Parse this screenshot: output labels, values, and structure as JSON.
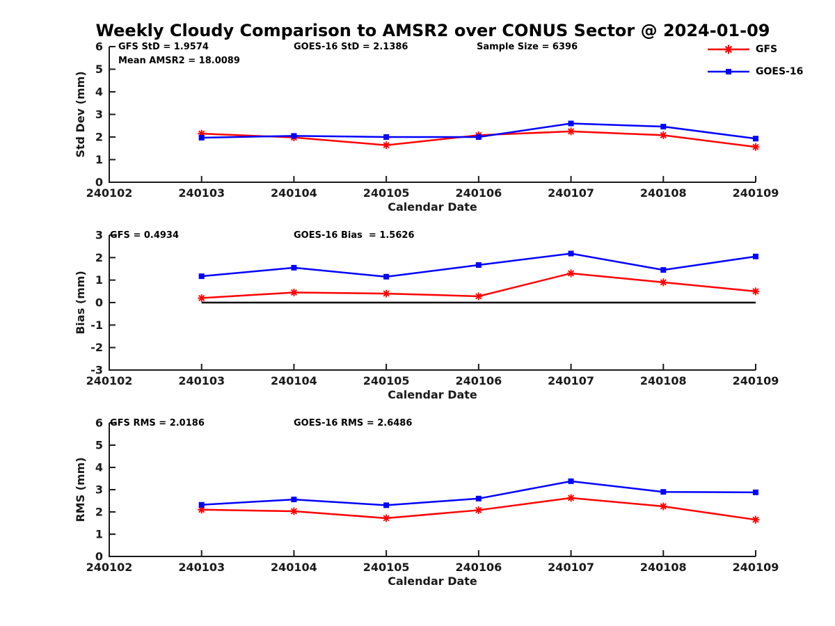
{
  "title": "Weekly Cloudy Comparison to AMSR2 over CONUS Sector @ 2024-01-09",
  "axis_color": "#1a1a1a",
  "text_color": "#000000",
  "legend": [
    {
      "label": "GFS",
      "color": "#ff0000",
      "marker": "asterisk"
    },
    {
      "label": "GOES-16",
      "color": "#0000ff",
      "marker": "square"
    }
  ],
  "chart_data": [
    {
      "type": "line",
      "name": "std-dev",
      "ylabel": "Std Dev (mm)",
      "xlabel": "Calendar Date",
      "ylim": [
        0,
        6
      ],
      "ytick_step": 1,
      "grid": false,
      "x_axis_categories": [
        "240102",
        "240103",
        "240104",
        "240105",
        "240106",
        "240107",
        "240108",
        "240109"
      ],
      "x": [
        "240103",
        "240104",
        "240105",
        "240106",
        "240107",
        "240108",
        "240109"
      ],
      "series": [
        {
          "name": "GFS",
          "color": "#ff0000",
          "marker": "asterisk",
          "values": [
            2.15,
            1.98,
            1.64,
            2.08,
            2.25,
            2.08,
            1.56
          ]
        },
        {
          "name": "GOES-16",
          "color": "#0000ff",
          "marker": "square",
          "values": [
            1.97,
            2.05,
            2.0,
            2.0,
            2.6,
            2.46,
            1.93
          ]
        }
      ],
      "annotations": [
        {
          "text": "GFS StD = 1.9574",
          "slot": 0,
          "row": 0
        },
        {
          "text": "GOES-16 StD = 2.1386",
          "slot": 1,
          "row": 0
        },
        {
          "text": "Sample Size = 6396",
          "slot": 2,
          "row": 0
        },
        {
          "text": "Mean AMSR2 = 18.0089",
          "slot": 0,
          "row": 1
        }
      ],
      "zero_line": false
    },
    {
      "type": "line",
      "name": "bias",
      "ylabel": "Bias (mm)",
      "xlabel": "Calendar Date",
      "ylim": [
        -3,
        3
      ],
      "ytick_step": 1,
      "grid": false,
      "x_axis_categories": [
        "240102",
        "240103",
        "240104",
        "240105",
        "240106",
        "240107",
        "240108",
        "240109"
      ],
      "x": [
        "240103",
        "240104",
        "240105",
        "240106",
        "240107",
        "240108",
        "240109"
      ],
      "series": [
        {
          "name": "GFS",
          "color": "#ff0000",
          "marker": "asterisk",
          "values": [
            0.2,
            0.45,
            0.4,
            0.28,
            1.3,
            0.9,
            0.5
          ]
        },
        {
          "name": "GOES-16",
          "color": "#0000ff",
          "marker": "square",
          "values": [
            1.17,
            1.55,
            1.15,
            1.67,
            2.18,
            1.45,
            2.05
          ]
        }
      ],
      "annotations": [
        {
          "text": "GFS = 0.4934",
          "slot": 0,
          "row": 0
        },
        {
          "text": "GOES-16 Bias  = 1.5626",
          "slot": 1,
          "row": 0
        }
      ],
      "zero_line": true
    },
    {
      "type": "line",
      "name": "rms",
      "ylabel": "RMS (mm)",
      "xlabel": "Calendar Date",
      "ylim": [
        0,
        6
      ],
      "ytick_step": 1,
      "grid": false,
      "x_axis_categories": [
        "240102",
        "240103",
        "240104",
        "240105",
        "240106",
        "240107",
        "240108",
        "240109"
      ],
      "x": [
        "240103",
        "240104",
        "240105",
        "240106",
        "240107",
        "240108",
        "240109"
      ],
      "series": [
        {
          "name": "GFS",
          "color": "#ff0000",
          "marker": "asterisk",
          "values": [
            2.1,
            2.03,
            1.72,
            2.08,
            2.63,
            2.25,
            1.65
          ]
        },
        {
          "name": "GOES-16",
          "color": "#0000ff",
          "marker": "square",
          "values": [
            2.32,
            2.56,
            2.3,
            2.6,
            3.38,
            2.9,
            2.88
          ]
        }
      ],
      "annotations": [
        {
          "text": "GFS RMS = 2.0186",
          "slot": 0,
          "row": 0
        },
        {
          "text": "GOES-16 RMS = 2.6486",
          "slot": 1,
          "row": 0
        }
      ],
      "zero_line": false
    }
  ]
}
